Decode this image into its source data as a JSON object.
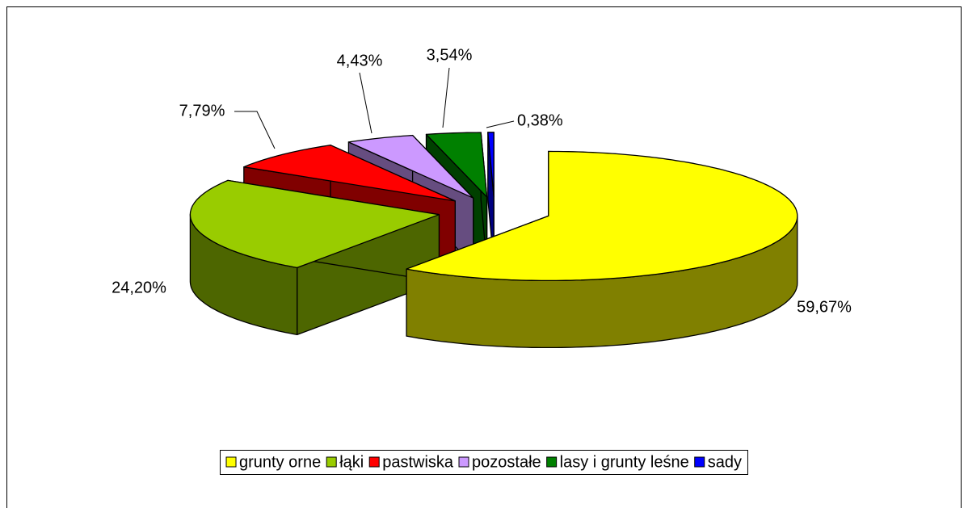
{
  "chart_data": {
    "type": "pie3d",
    "categories": [
      "grunty orne",
      "łąki",
      "pastwiska",
      "pozostałe",
      "lasy i grunty leśne",
      "sady"
    ],
    "values": [
      59.67,
      24.2,
      7.79,
      4.43,
      3.54,
      0.38
    ],
    "value_labels": [
      "59,67%",
      "24,20%",
      "7,79%",
      "4,43%",
      "3,54%",
      "0,38%"
    ],
    "colors": [
      "#ffff00",
      "#99cc00",
      "#ff0000",
      "#cc99ff",
      "#008000",
      "#0000ff"
    ],
    "legend": "bottom"
  }
}
